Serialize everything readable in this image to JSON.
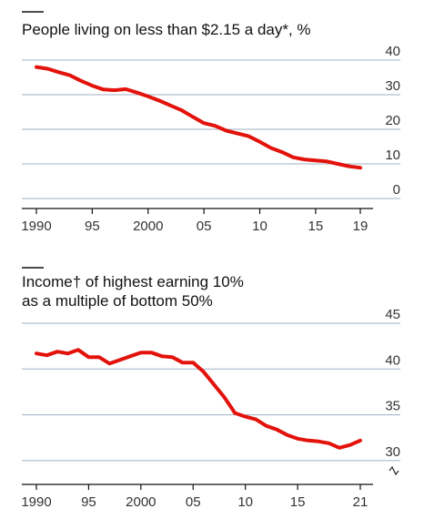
{
  "colors": {
    "series": "#e3120b",
    "grid": "#9fb0c3",
    "text": "#111111"
  },
  "chart_data": [
    {
      "type": "line",
      "title": "People living on less than $2.15 a day*, %",
      "xlim": [
        1990,
        2019
      ],
      "ylim": [
        0,
        40
      ],
      "y_ticks": [
        "40",
        "30",
        "20",
        "10",
        "0"
      ],
      "y_tick_values": [
        40,
        30,
        20,
        10,
        0
      ],
      "x_tick_values": [
        1990,
        1995,
        2000,
        2005,
        2010,
        2015,
        2019
      ],
      "x_tick_labels": [
        "1990",
        "95",
        "2000",
        "05",
        "10",
        "15",
        "19"
      ],
      "grid": true,
      "series": [
        {
          "x": [
            1990,
            1991,
            1992,
            1993,
            1994,
            1995,
            1996,
            1997,
            1998,
            1999,
            2000,
            2001,
            2002,
            2003,
            2004,
            2005,
            2006,
            2007,
            2008,
            2009,
            2010,
            2011,
            2012,
            2013,
            2014,
            2015,
            2016,
            2017,
            2018,
            2019
          ],
          "values": [
            38,
            37.5,
            36.5,
            35.6,
            34,
            32.6,
            31.5,
            31.3,
            31.6,
            30.6,
            29.5,
            28.3,
            26.9,
            25.5,
            23.6,
            21.8,
            21.0,
            19.6,
            18.8,
            18.0,
            16.4,
            14.6,
            13.4,
            11.9,
            11.3,
            11.0,
            10.7,
            10.0,
            9.3,
            8.9
          ]
        }
      ]
    },
    {
      "type": "line",
      "title_lines": [
        "Income† of highest earning 10%",
        "as a multiple of bottom 50%"
      ],
      "xlim": [
        1990,
        2021
      ],
      "ylim": [
        28.5,
        45
      ],
      "y_ticks": [
        "45",
        "40",
        "35",
        "30"
      ],
      "y_tick_values": [
        45,
        40,
        35,
        30
      ],
      "x_tick_values": [
        1990,
        1995,
        2000,
        2005,
        2010,
        2015,
        2021
      ],
      "x_tick_labels": [
        "1990",
        "95",
        "2000",
        "05",
        "10",
        "15",
        "21"
      ],
      "axis_break": true,
      "grid": true,
      "series": [
        {
          "x": [
            1990,
            1991,
            1992,
            1993,
            1994,
            1995,
            1996,
            1997,
            1998,
            1999,
            2000,
            2001,
            2002,
            2003,
            2004,
            2005,
            2006,
            2007,
            2008,
            2009,
            2010,
            2011,
            2012,
            2013,
            2014,
            2015,
            2016,
            2017,
            2018,
            2019,
            2020,
            2021
          ],
          "values": [
            41.7,
            41.5,
            41.9,
            41.7,
            42.1,
            41.3,
            41.3,
            40.6,
            41.0,
            41.4,
            41.8,
            41.8,
            41.4,
            41.3,
            40.7,
            40.7,
            39.7,
            38.3,
            36.9,
            35.2,
            34.8,
            34.5,
            33.8,
            33.4,
            32.8,
            32.4,
            32.2,
            32.1,
            31.9,
            31.4,
            31.7,
            32.2
          ]
        }
      ]
    }
  ]
}
